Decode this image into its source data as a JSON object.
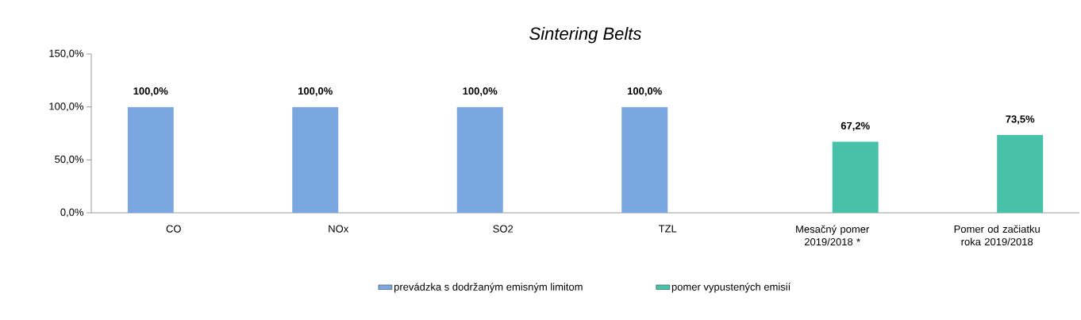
{
  "chart_data": {
    "type": "bar",
    "title": "Sintering Belts",
    "categories": [
      "CO",
      "NOx",
      "SO2",
      "TZL",
      "Mesačný pomer 2019/2018 *",
      "Pomer od začiatku roka 2019/2018"
    ],
    "series": [
      {
        "name": "prevádzka s dodržaným emisným limitom",
        "color": "#7aa7e0",
        "values": [
          100,
          100,
          100,
          100,
          null,
          null
        ],
        "value_labels": [
          "100,0%",
          "100,0%",
          "100,0%",
          "100,0%",
          null,
          null
        ]
      },
      {
        "name": "pomer vypustených emisií",
        "color": "#47c1a8",
        "values": [
          null,
          null,
          null,
          null,
          67.2,
          73.5
        ],
        "value_labels": [
          null,
          null,
          null,
          null,
          "67,2%",
          "73,5%"
        ]
      }
    ],
    "ylim": [
      0,
      150
    ],
    "yticks": [
      {
        "value": 0,
        "label": "0,0%"
      },
      {
        "value": 50,
        "label": "50,0%"
      },
      {
        "value": 100,
        "label": "100,0%"
      },
      {
        "value": 150,
        "label": "150,0%"
      }
    ],
    "legend": "bottom"
  }
}
